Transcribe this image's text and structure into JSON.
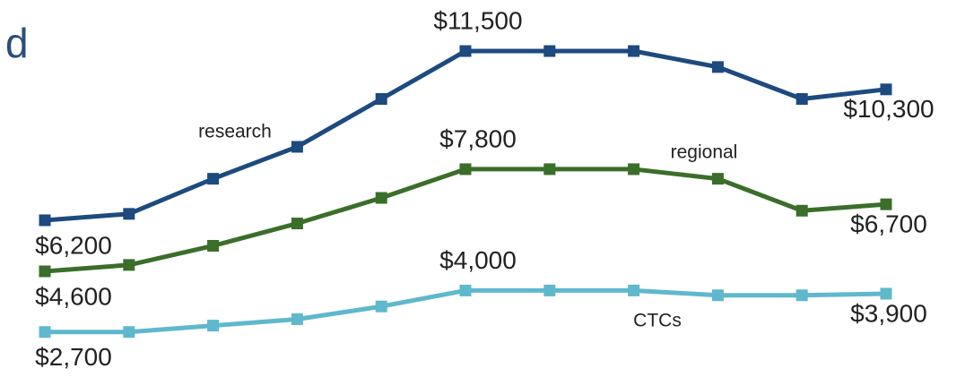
{
  "chart_data": {
    "type": "line",
    "title": "d",
    "categories": [
      null,
      null,
      null,
      null,
      null,
      null,
      null,
      null,
      null,
      null,
      null
    ],
    "series": [
      {
        "name": "research",
        "color": "#1d4a7f",
        "values": [
          6200,
          6400,
          7500,
          8500,
          10000,
          11500,
          11500,
          11500,
          11000,
          10000,
          10300
        ],
        "value_labels": [
          "$6,200",
          null,
          null,
          null,
          null,
          "$11,500",
          null,
          null,
          null,
          null,
          "$10,300"
        ]
      },
      {
        "name": "regional",
        "color": "#3b6e2a",
        "values": [
          4600,
          4800,
          5400,
          6100,
          6900,
          7800,
          7800,
          7800,
          7500,
          6500,
          6700
        ],
        "value_labels": [
          "$4,600",
          null,
          null,
          null,
          null,
          "$7,800",
          null,
          null,
          null,
          null,
          "$6,700"
        ]
      },
      {
        "name": "CTCs",
        "color": "#5fb8cc",
        "values": [
          2700,
          2700,
          2900,
          3100,
          3500,
          4000,
          4000,
          4000,
          3850,
          3850,
          3900
        ],
        "value_labels": [
          "$2,700",
          null,
          null,
          null,
          null,
          "$4,000",
          null,
          null,
          null,
          null,
          "$3,900"
        ]
      }
    ]
  }
}
